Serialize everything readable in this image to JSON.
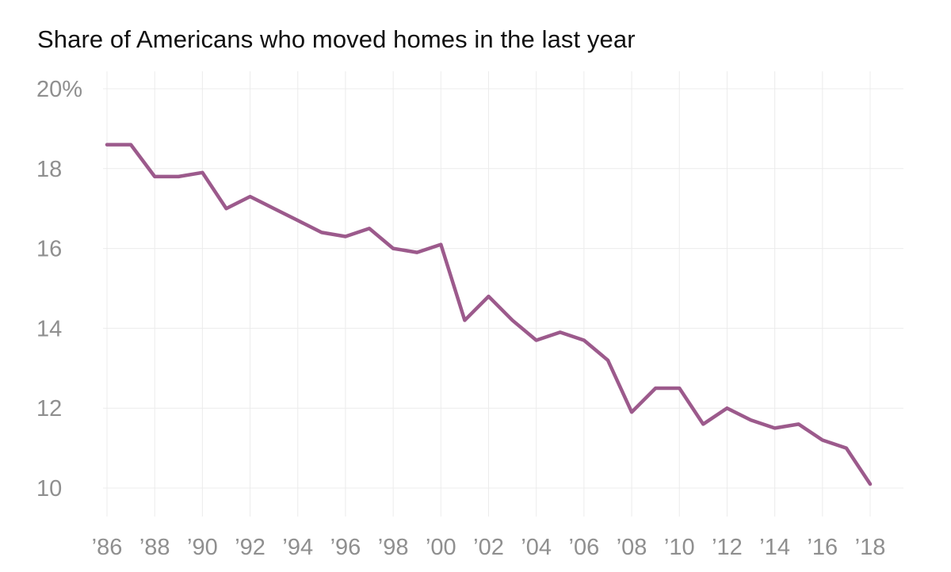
{
  "chart_data": {
    "type": "line",
    "title": "Share of Americans who moved homes in the last year",
    "xlabel": "",
    "ylabel": "",
    "x": [
      1986,
      1987,
      1988,
      1989,
      1990,
      1991,
      1992,
      1993,
      1994,
      1995,
      1996,
      1997,
      1998,
      1999,
      2000,
      2001,
      2002,
      2003,
      2004,
      2005,
      2006,
      2007,
      2008,
      2009,
      2010,
      2011,
      2012,
      2013,
      2014,
      2015,
      2016,
      2017,
      2018
    ],
    "series": [
      {
        "values": [
          18.6,
          18.6,
          17.8,
          17.8,
          17.9,
          17.0,
          17.3,
          17.0,
          16.7,
          16.4,
          16.3,
          16.5,
          16.0,
          15.9,
          16.1,
          14.2,
          14.8,
          14.2,
          13.7,
          13.9,
          13.7,
          13.2,
          11.9,
          12.5,
          12.5,
          11.6,
          12.0,
          11.7,
          11.5,
          11.6,
          11.2,
          11.0,
          10.1
        ],
        "color": "#9c5a8c"
      }
    ],
    "xlim": [
      1986,
      2018
    ],
    "ylim": [
      10,
      20
    ],
    "y_ticks": [
      {
        "value": 20,
        "label": "20%"
      },
      {
        "value": 18,
        "label": "18"
      },
      {
        "value": 16,
        "label": "16"
      },
      {
        "value": 14,
        "label": "14"
      },
      {
        "value": 12,
        "label": "12"
      },
      {
        "value": 10,
        "label": "10"
      }
    ],
    "x_ticks": [
      {
        "value": 1986,
        "label": "’86"
      },
      {
        "value": 1988,
        "label": "’88"
      },
      {
        "value": 1990,
        "label": "’90"
      },
      {
        "value": 1992,
        "label": "’92"
      },
      {
        "value": 1994,
        "label": "’94"
      },
      {
        "value": 1996,
        "label": "’96"
      },
      {
        "value": 1998,
        "label": "’98"
      },
      {
        "value": 2000,
        "label": "’00"
      },
      {
        "value": 2002,
        "label": "’02"
      },
      {
        "value": 2004,
        "label": "’04"
      },
      {
        "value": 2006,
        "label": "’06"
      },
      {
        "value": 2008,
        "label": "’08"
      },
      {
        "value": 2010,
        "label": "’10"
      },
      {
        "value": 2012,
        "label": "’12"
      },
      {
        "value": 2014,
        "label": "’14"
      },
      {
        "value": 2016,
        "label": "’16"
      },
      {
        "value": 2018,
        "label": "’18"
      }
    ],
    "grid": true,
    "legend": "none"
  }
}
